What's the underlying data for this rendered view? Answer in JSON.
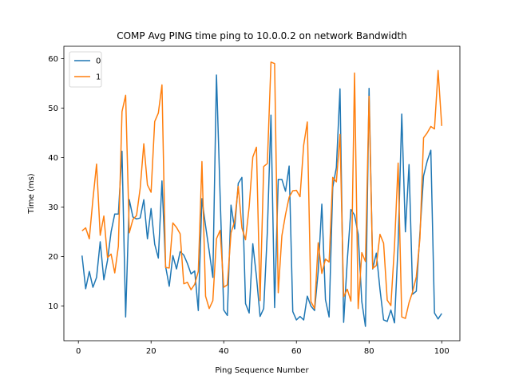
{
  "chart_data": {
    "type": "line",
    "title": "COMP Avg PING time ping to 10.0.0.2 on network Bandwidth",
    "xlabel": "Ping Sequence Number",
    "ylabel": "Time (ms)",
    "xlim": [
      -4,
      105
    ],
    "ylim": [
      3,
      62.5
    ],
    "xticks": [
      0,
      20,
      40,
      60,
      80,
      100
    ],
    "yticks": [
      10,
      20,
      30,
      40,
      50,
      60
    ],
    "grid": false,
    "legend_position": "top-left",
    "x": [
      1,
      2,
      3,
      4,
      5,
      6,
      7,
      8,
      9,
      10,
      11,
      12,
      13,
      14,
      15,
      16,
      17,
      18,
      19,
      20,
      21,
      22,
      23,
      24,
      25,
      26,
      27,
      28,
      29,
      30,
      31,
      32,
      33,
      34,
      35,
      36,
      37,
      38,
      39,
      40,
      41,
      42,
      43,
      44,
      45,
      46,
      47,
      48,
      49,
      50,
      51,
      52,
      53,
      54,
      55,
      56,
      57,
      58,
      59,
      60,
      61,
      62,
      63,
      64,
      65,
      66,
      67,
      68,
      69,
      70,
      71,
      72,
      73,
      74,
      75,
      76,
      77,
      78,
      79,
      80,
      81,
      82,
      83,
      84,
      85,
      86,
      87,
      88,
      89,
      90,
      91,
      92,
      93,
      94,
      95,
      96,
      97,
      98,
      99,
      100
    ],
    "series": [
      {
        "name": "0",
        "color": "#1f77b4",
        "values": [
          20.2,
          13.5,
          17.0,
          13.8,
          15.8,
          23.0,
          15.3,
          19.2,
          25.0,
          28.6,
          28.6,
          41.3,
          7.8,
          31.5,
          28.0,
          27.6,
          27.8,
          31.5,
          23.6,
          29.7,
          22.5,
          19.7,
          35.3,
          18.0,
          14.0,
          20.2,
          17.5,
          21.0,
          20.3,
          18.6,
          16.5,
          17.1,
          9.1,
          31.7,
          26.2,
          21.1,
          15.8,
          56.7,
          32.4,
          9.2,
          8.1,
          30.4,
          25.6,
          34.8,
          36.0,
          10.5,
          8.6,
          22.6,
          16.0,
          7.9,
          9.5,
          25.0,
          48.6,
          9.7,
          35.6,
          35.6,
          33.2,
          38.3,
          8.9,
          7.2,
          7.9,
          7.2,
          12.0,
          10.0,
          9.1,
          17.0,
          30.6,
          11.3,
          7.8,
          34.0,
          38.0,
          53.9,
          6.7,
          19.2,
          29.5,
          28.4,
          24.5,
          10.9,
          5.9,
          54.0,
          17.5,
          20.7,
          13.4,
          7.2,
          6.9,
          9.2,
          6.6,
          22.5,
          48.8,
          25.0,
          38.6,
          12.4,
          13.0,
          24.8,
          36.3,
          39.3,
          41.5,
          8.6,
          7.4,
          8.5
        ]
      },
      {
        "name": "1",
        "color": "#ff7f0e",
        "values": [
          25.2,
          25.8,
          23.6,
          31.6,
          38.7,
          24.3,
          28.2,
          19.8,
          20.5,
          16.7,
          22.1,
          49.3,
          52.6,
          24.8,
          27.5,
          28.3,
          33.8,
          42.8,
          34.5,
          33.0,
          47.3,
          49.0,
          54.7,
          17.8,
          17.7,
          26.8,
          25.9,
          24.6,
          14.5,
          14.8,
          13.3,
          14.4,
          17.0,
          39.2,
          12.0,
          9.5,
          11.1,
          23.6,
          25.3,
          13.8,
          14.3,
          24.8,
          27.1,
          34.2,
          25.8,
          23.4,
          30.1,
          40.1,
          42.1,
          11.1,
          38.2,
          38.8,
          59.3,
          59.0,
          12.7,
          24.2,
          28.5,
          32.0,
          33.3,
          33.4,
          32.1,
          42.5,
          47.2,
          10.9,
          9.5,
          22.8,
          16.6,
          19.5,
          18.9,
          36.0,
          35.1,
          44.7,
          11.9,
          13.4,
          11.0,
          57.1,
          9.5,
          20.8,
          19.0,
          52.4,
          17.6,
          18.2,
          24.5,
          22.7,
          11.2,
          10.1,
          22.1,
          38.9,
          7.8,
          7.5,
          10.7,
          12.9,
          15.9,
          23.7,
          44.0,
          45.0,
          46.3,
          45.8,
          57.6,
          46.4
        ]
      }
    ]
  }
}
